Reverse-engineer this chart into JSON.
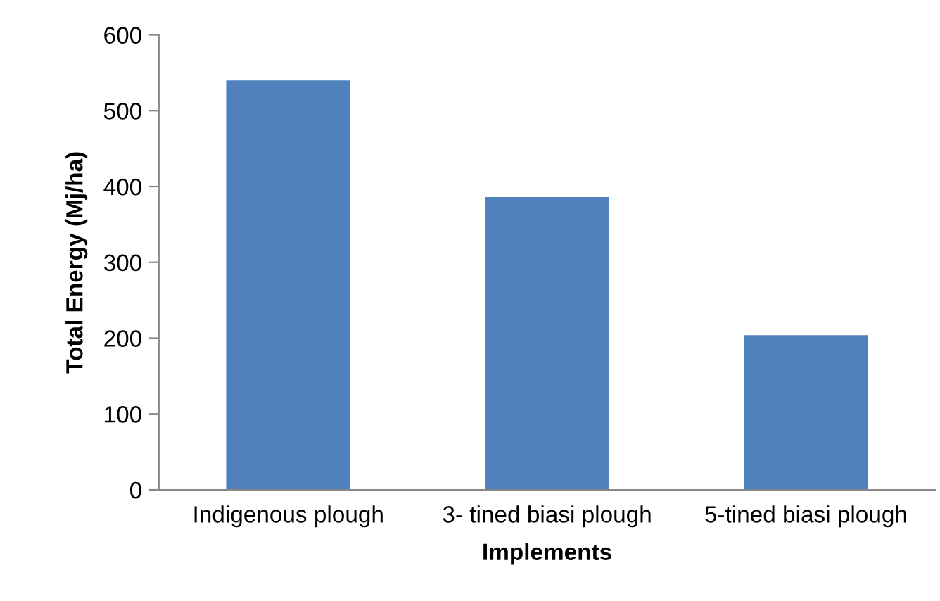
{
  "chart_data": {
    "type": "bar",
    "xlabel": "Implements",
    "ylabel": "Total Energy (Mj/ha)",
    "categories": [
      "Indigenous plough",
      "3- tined biasi plough",
      "5-tined biasi plough"
    ],
    "values": [
      540,
      386,
      204
    ],
    "color": "#4f81bd",
    "ylim": [
      0,
      600
    ],
    "yticks": [
      0,
      100,
      200,
      300,
      400,
      500,
      600
    ],
    "grid": false,
    "legend": false
  }
}
